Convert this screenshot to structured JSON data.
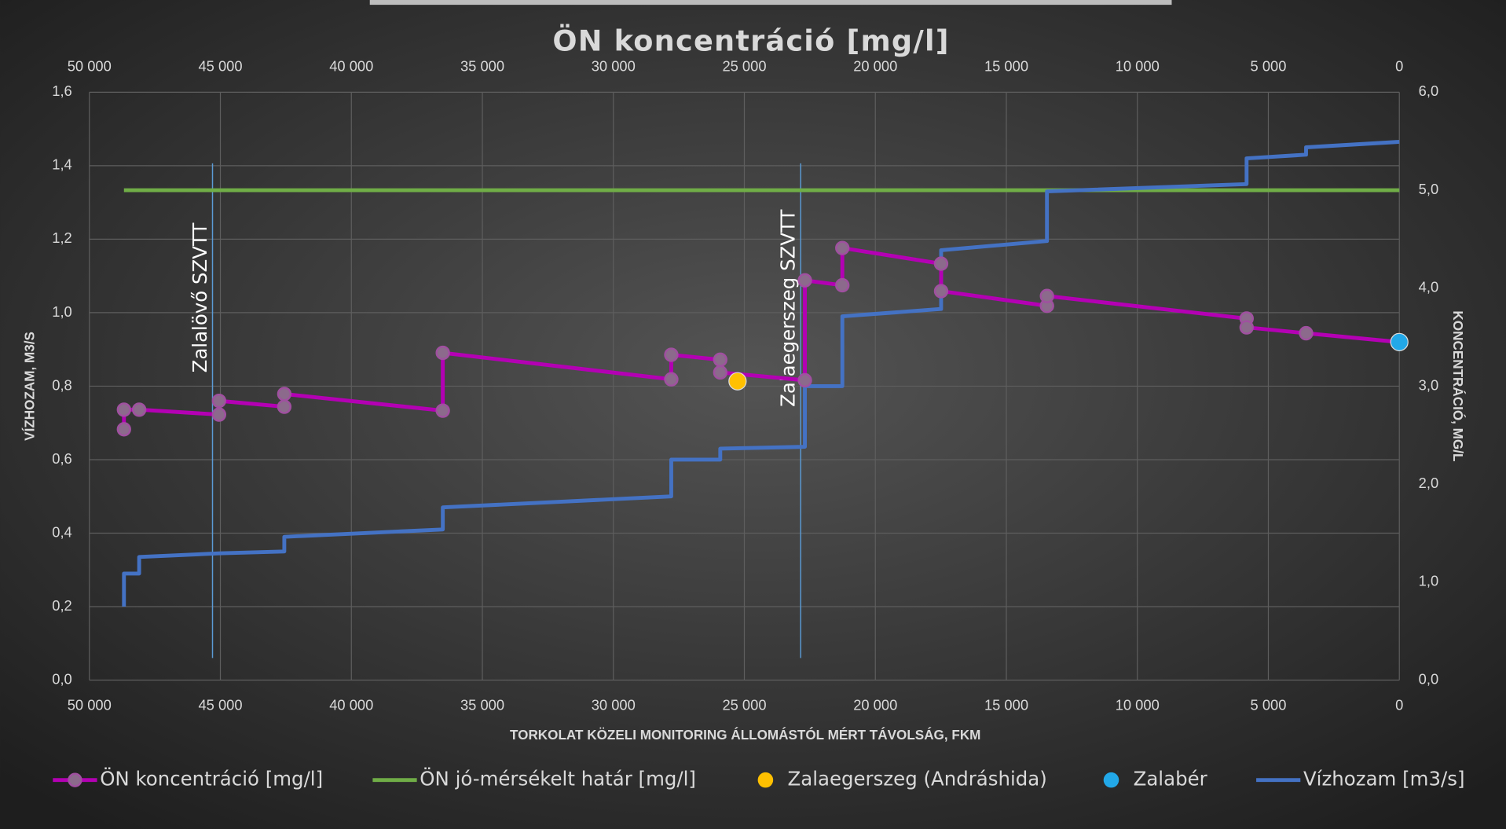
{
  "chart_data": {
    "type": "line",
    "title": "ÖN koncentráció [mg/l]",
    "x_label": "TORKOLAT KÖZELI MONITORING ÁLLOMÁSTÓL MÉRT TÁVOLSÁG, FKM",
    "y_label": "VÍZHOZAM, M3/S",
    "y2_label": "KONCENTRÁCIÓ, MG/L",
    "xlim": [
      50000,
      0
    ],
    "xticks": [
      {
        "value": 50000,
        "label": "50 000"
      },
      {
        "value": 45000,
        "label": "45 000"
      },
      {
        "value": 40000,
        "label": "40 000"
      },
      {
        "value": 35000,
        "label": "35 000"
      },
      {
        "value": 30000,
        "label": "30 000"
      },
      {
        "value": 25000,
        "label": "25 000"
      },
      {
        "value": 20000,
        "label": "20 000"
      },
      {
        "value": 15000,
        "label": "15 000"
      },
      {
        "value": 10000,
        "label": "10 000"
      },
      {
        "value": 5000,
        "label": "5 000"
      },
      0
    ],
    "ylim": [
      0,
      1.6
    ],
    "yticks": [
      {
        "value": 0,
        "label": "0,0"
      },
      {
        "value": 0.2,
        "label": "0,2"
      },
      {
        "value": 0.4,
        "label": "0,4"
      },
      {
        "value": 0.6,
        "label": "0,6"
      },
      {
        "value": 0.8,
        "label": "0,8"
      },
      {
        "value": 1.0,
        "label": "1,0"
      },
      {
        "value": 1.2,
        "label": "1,2"
      },
      {
        "value": 1.4,
        "label": "1,4"
      },
      {
        "value": 1.6,
        "label": "1,6"
      }
    ],
    "y2lim": [
      0,
      6
    ],
    "y2ticks": [
      {
        "value": 0,
        "label": "0,0"
      },
      {
        "value": 1,
        "label": "1,0"
      },
      {
        "value": 2,
        "label": "2,0"
      },
      {
        "value": 3,
        "label": "3,0"
      },
      {
        "value": 4,
        "label": "4,0"
      },
      {
        "value": 5,
        "label": "5,0"
      },
      {
        "value": 6,
        "label": "6,0"
      }
    ],
    "grid": true,
    "legend": "bottom",
    "annotations": [
      {
        "text": "Zalalövő SZVTT",
        "x": 45300
      },
      {
        "text": "Zalaegerszeg SZVTT",
        "x": 22850
      }
    ],
    "series": [
      {
        "name": "ÖN koncentráció [mg/l]",
        "color": "#b400b4",
        "axis": "y2",
        "style": "line-marker",
        "x": [
          48680,
          48680,
          48100,
          45050,
          45050,
          42560,
          42560,
          36510,
          36510,
          27790,
          27790,
          25920,
          25920,
          22690,
          22690,
          21260,
          21260,
          17490,
          17490,
          13450,
          13450,
          5830,
          5830,
          3560,
          0
        ],
        "values": [
          2.56,
          2.76,
          2.76,
          2.71,
          2.85,
          2.79,
          2.92,
          2.75,
          3.34,
          3.07,
          3.32,
          3.27,
          3.14,
          3.06,
          4.08,
          4.03,
          4.41,
          4.25,
          3.97,
          3.82,
          3.92,
          3.69,
          3.6,
          3.54,
          3.45
        ]
      },
      {
        "name": "ÖN jó-mérsékelt határ [mg/l]",
        "color": "#70ad47",
        "axis": "y2",
        "style": "line",
        "x": [
          48680,
          0
        ],
        "values": [
          5.0,
          5.0
        ]
      },
      {
        "name": "Zalaegerszeg (Andráshida)",
        "color": "#ffc000",
        "axis": "y2",
        "style": "point",
        "x": [
          25260
        ],
        "values": [
          3.05
        ]
      },
      {
        "name": "Zalabér",
        "color": "#22a8e8",
        "axis": "y2",
        "style": "point",
        "x": [
          0
        ],
        "values": [
          3.45
        ]
      },
      {
        "name": "Vízhozam [m3/s]",
        "color": "#4472c4",
        "axis": "y",
        "style": "line",
        "x": [
          48680,
          48680,
          48100,
          48100,
          45050,
          42560,
          42560,
          36510,
          36510,
          27790,
          27790,
          25920,
          25920,
          22690,
          22690,
          21260,
          21260,
          17490,
          17490,
          13450,
          13450,
          5830,
          5830,
          3560,
          3560,
          0
        ],
        "values": [
          0.2,
          0.29,
          0.29,
          0.335,
          0.345,
          0.35,
          0.39,
          0.41,
          0.47,
          0.5,
          0.6,
          0.6,
          0.63,
          0.635,
          0.8,
          0.8,
          0.99,
          1.01,
          1.17,
          1.195,
          1.33,
          1.35,
          1.42,
          1.43,
          1.45,
          1.465
        ]
      }
    ]
  }
}
